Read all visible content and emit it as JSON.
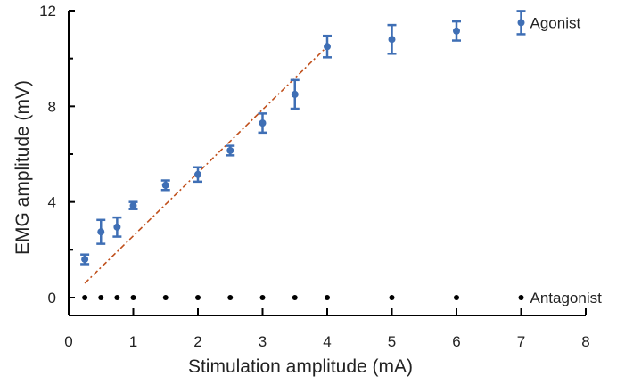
{
  "chart_data": {
    "type": "scatter",
    "xlabel": "Stimulation amplitude (mA)",
    "ylabel": "EMG amplitude (mV)",
    "xlim": [
      0,
      8
    ],
    "ylim": [
      0,
      12
    ],
    "x_ticks": [
      "0",
      "1",
      "2",
      "3",
      "4",
      "5",
      "6",
      "7",
      "8"
    ],
    "y_ticks": [
      "0",
      "4",
      "8",
      "12"
    ],
    "grid": false,
    "legend_position": "right",
    "series": [
      {
        "name": "Agonist",
        "color": "#3f6fb5",
        "marker": "circle with error bars",
        "points": [
          {
            "x": 0.25,
            "y": 1.6,
            "err": 0.2
          },
          {
            "x": 0.5,
            "y": 2.75,
            "err": 0.5
          },
          {
            "x": 0.75,
            "y": 2.95,
            "err": 0.4
          },
          {
            "x": 1.0,
            "y": 3.85,
            "err": 0.15
          },
          {
            "x": 1.5,
            "y": 4.7,
            "err": 0.2
          },
          {
            "x": 2.0,
            "y": 5.15,
            "err": 0.3
          },
          {
            "x": 2.5,
            "y": 6.15,
            "err": 0.2
          },
          {
            "x": 3.0,
            "y": 7.3,
            "err": 0.4
          },
          {
            "x": 3.5,
            "y": 8.5,
            "err": 0.6
          },
          {
            "x": 4.0,
            "y": 10.5,
            "err": 0.45
          },
          {
            "x": 5.0,
            "y": 10.8,
            "err": 0.6
          },
          {
            "x": 6.0,
            "y": 11.15,
            "err": 0.4
          }
        ]
      },
      {
        "name": "Antagonist",
        "color": "#000000",
        "marker": "dot",
        "points": [
          {
            "x": 0.25,
            "y": 0
          },
          {
            "x": 0.5,
            "y": 0
          },
          {
            "x": 0.75,
            "y": 0
          },
          {
            "x": 1.0,
            "y": 0
          },
          {
            "x": 1.5,
            "y": 0
          },
          {
            "x": 2.0,
            "y": 0
          },
          {
            "x": 2.5,
            "y": 0
          },
          {
            "x": 3.0,
            "y": 0
          },
          {
            "x": 3.5,
            "y": 0
          },
          {
            "x": 4.0,
            "y": 0
          },
          {
            "x": 5.0,
            "y": 0
          },
          {
            "x": 6.0,
            "y": 0
          }
        ]
      }
    ],
    "trendline": {
      "style": "dash-dot",
      "color": "#c0501c",
      "x": [
        0.25,
        4.0
      ],
      "y": [
        0.6,
        10.5
      ]
    },
    "legend": [
      {
        "label": "Agonist",
        "marker": "circle with error bars",
        "color": "#3f6fb5",
        "y": 11.5
      },
      {
        "label": "Antagonist",
        "marker": "dot",
        "color": "#000000",
        "y": 0
      }
    ]
  }
}
